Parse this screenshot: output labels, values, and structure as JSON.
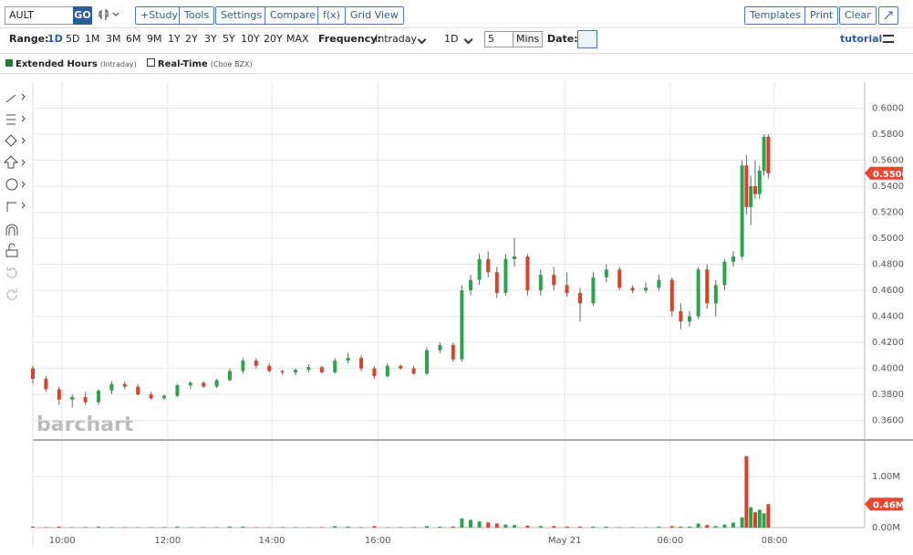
{
  "toolbar": {
    "symbol": "AULT",
    "go": "GO",
    "buttons": [
      "+Study",
      "Tools",
      "Settings",
      "Compare",
      "f(x)",
      "Grid View"
    ],
    "right_buttons": [
      "Templates",
      "Print",
      "Clear"
    ]
  },
  "options": {
    "range_label": "Range:",
    "ranges": [
      "1D",
      "5D",
      "1M",
      "3M",
      "6M",
      "9M",
      "1Y",
      "2Y",
      "3Y",
      "5Y",
      "10Y",
      "20Y",
      "MAX"
    ],
    "frequency_label": "Frequency:",
    "frequency": "Intraday",
    "period": "1D",
    "interval": "5",
    "interval_unit": "Mins",
    "date_label": "Date:",
    "tutorial": "tutorial"
  },
  "legend": {
    "extended": "Extended Hours",
    "extended_note": "(Intraday)",
    "realtime": "Real-Time",
    "realtime_note": "(Cboe BZX)"
  },
  "watermark": "barchart",
  "chart_data": {
    "type": "candlestick",
    "up_color": "#2ca24b",
    "down_color": "#d8432e",
    "grid": true,
    "x": [
      0,
      3,
      6,
      9,
      12,
      15,
      18,
      21,
      24,
      27,
      30,
      33,
      36,
      39,
      42,
      45,
      48,
      51,
      54,
      57,
      60,
      63,
      66,
      69,
      72,
      75,
      78,
      81,
      84,
      87,
      90,
      93,
      96,
      98,
      100,
      102,
      104,
      106,
      108,
      110,
      113,
      116,
      119,
      122,
      125,
      128,
      131,
      134,
      137,
      140,
      143,
      146,
      148,
      150,
      152,
      154,
      156,
      158,
      160,
      162,
      163,
      164,
      165,
      166,
      167,
      168
    ],
    "open": [
      0.4,
      0.392,
      0.384,
      0.376,
      0.378,
      0.374,
      0.383,
      0.388,
      0.386,
      0.38,
      0.377,
      0.379,
      0.387,
      0.389,
      0.386,
      0.391,
      0.398,
      0.406,
      0.402,
      0.398,
      0.397,
      0.399,
      0.401,
      0.397,
      0.406,
      0.408,
      0.4,
      0.394,
      0.402,
      0.4,
      0.396,
      0.414,
      0.418,
      0.407,
      0.46,
      0.468,
      0.484,
      0.474,
      0.458,
      0.484,
      0.486,
      0.46,
      0.472,
      0.464,
      0.458,
      0.45,
      0.47,
      0.476,
      0.462,
      0.46,
      0.462,
      0.468,
      0.444,
      0.436,
      0.44,
      0.476,
      0.45,
      0.464,
      0.482,
      0.486,
      0.556,
      0.524,
      0.54,
      0.534,
      0.552,
      0.578
    ],
    "high": [
      0.402,
      0.394,
      0.386,
      0.38,
      0.382,
      0.384,
      0.39,
      0.39,
      0.388,
      0.382,
      0.38,
      0.388,
      0.39,
      0.39,
      0.392,
      0.4,
      0.408,
      0.408,
      0.404,
      0.399,
      0.4,
      0.403,
      0.402,
      0.408,
      0.412,
      0.41,
      0.402,
      0.404,
      0.403,
      0.402,
      0.416,
      0.42,
      0.42,
      0.464,
      0.472,
      0.488,
      0.49,
      0.478,
      0.488,
      0.5,
      0.488,
      0.476,
      0.478,
      0.474,
      0.462,
      0.474,
      0.48,
      0.478,
      0.464,
      0.466,
      0.472,
      0.47,
      0.45,
      0.444,
      0.478,
      0.48,
      0.468,
      0.484,
      0.49,
      0.56,
      0.564,
      0.548,
      0.56,
      0.556,
      0.58,
      0.58
    ],
    "low": [
      0.388,
      0.382,
      0.372,
      0.37,
      0.372,
      0.372,
      0.38,
      0.384,
      0.379,
      0.376,
      0.376,
      0.378,
      0.384,
      0.385,
      0.385,
      0.39,
      0.396,
      0.4,
      0.397,
      0.395,
      0.395,
      0.397,
      0.396,
      0.396,
      0.404,
      0.398,
      0.392,
      0.393,
      0.399,
      0.395,
      0.395,
      0.412,
      0.405,
      0.405,
      0.456,
      0.464,
      0.47,
      0.454,
      0.456,
      0.478,
      0.456,
      0.456,
      0.46,
      0.455,
      0.436,
      0.448,
      0.466,
      0.46,
      0.458,
      0.458,
      0.46,
      0.44,
      0.43,
      0.432,
      0.438,
      0.446,
      0.44,
      0.46,
      0.478,
      0.484,
      0.518,
      0.51,
      0.53,
      0.53,
      0.548,
      0.546
    ],
    "close": [
      0.392,
      0.384,
      0.376,
      0.378,
      0.374,
      0.383,
      0.388,
      0.386,
      0.38,
      0.377,
      0.379,
      0.387,
      0.389,
      0.386,
      0.391,
      0.398,
      0.406,
      0.402,
      0.398,
      0.397,
      0.399,
      0.401,
      0.397,
      0.406,
      0.408,
      0.4,
      0.394,
      0.402,
      0.4,
      0.396,
      0.414,
      0.418,
      0.407,
      0.46,
      0.468,
      0.484,
      0.474,
      0.458,
      0.484,
      0.486,
      0.46,
      0.472,
      0.464,
      0.458,
      0.45,
      0.47,
      0.476,
      0.462,
      0.46,
      0.462,
      0.468,
      0.444,
      0.436,
      0.44,
      0.476,
      0.45,
      0.464,
      0.482,
      0.486,
      0.556,
      0.524,
      0.54,
      0.534,
      0.552,
      0.578,
      0.55
    ],
    "volume": [
      0.02,
      0.01,
      0.02,
      0.01,
      0.01,
      0.02,
      0.01,
      0.01,
      0.01,
      0.01,
      0.01,
      0.02,
      0.01,
      0.01,
      0.01,
      0.02,
      0.02,
      0.01,
      0.01,
      0.01,
      0.01,
      0.01,
      0.01,
      0.03,
      0.02,
      0.01,
      0.03,
      0.01,
      0.01,
      0.01,
      0.03,
      0.02,
      0.02,
      0.18,
      0.15,
      0.12,
      0.1,
      0.08,
      0.06,
      0.05,
      0.04,
      0.03,
      0.03,
      0.02,
      0.02,
      0.02,
      0.02,
      0.01,
      0.01,
      0.01,
      0.02,
      0.03,
      0.02,
      0.02,
      0.08,
      0.05,
      0.03,
      0.06,
      0.1,
      0.2,
      1.4,
      0.4,
      0.3,
      0.35,
      0.28,
      0.46
    ],
    "xlim": [
      0,
      190
    ],
    "xticks": [
      {
        "value": 6.7,
        "label": "10:00"
      },
      {
        "value": 30.8,
        "label": "12:00"
      },
      {
        "value": 54.6,
        "label": "14:00"
      },
      {
        "value": 78.8,
        "label": "16:00"
      },
      {
        "value": 121.5,
        "label": "May 21"
      },
      {
        "value": 145.6,
        "label": "06:00"
      },
      {
        "value": 169.4,
        "label": "08:00"
      }
    ],
    "ylim": [
      0.345,
      0.62
    ],
    "yticks": [
      {
        "value": 0.36,
        "label": "0.3600"
      },
      {
        "value": 0.38,
        "label": "0.3800"
      },
      {
        "value": 0.4,
        "label": "0.4000"
      },
      {
        "value": 0.42,
        "label": "0.4200"
      },
      {
        "value": 0.44,
        "label": "0.4400"
      },
      {
        "value": 0.46,
        "label": "0.4600"
      },
      {
        "value": 0.48,
        "label": "0.4800"
      },
      {
        "value": 0.5,
        "label": "0.5000"
      },
      {
        "value": 0.52,
        "label": "0.5200"
      },
      {
        "value": 0.54,
        "label": "0.5400"
      },
      {
        "value": 0.56,
        "label": "0.5600"
      },
      {
        "value": 0.58,
        "label": "0.5800"
      },
      {
        "value": 0.6,
        "label": "0.6000"
      }
    ],
    "volume_ylim": [
      0,
      1.68
    ],
    "volume_yticks": [
      {
        "value": 0,
        "label": "0.00M"
      },
      {
        "value": 1,
        "label": "1.00M"
      }
    ],
    "current_price": {
      "value": 0.55,
      "label": "0.5500"
    },
    "current_volume": {
      "value": 0.46,
      "label": "0.46M"
    }
  }
}
